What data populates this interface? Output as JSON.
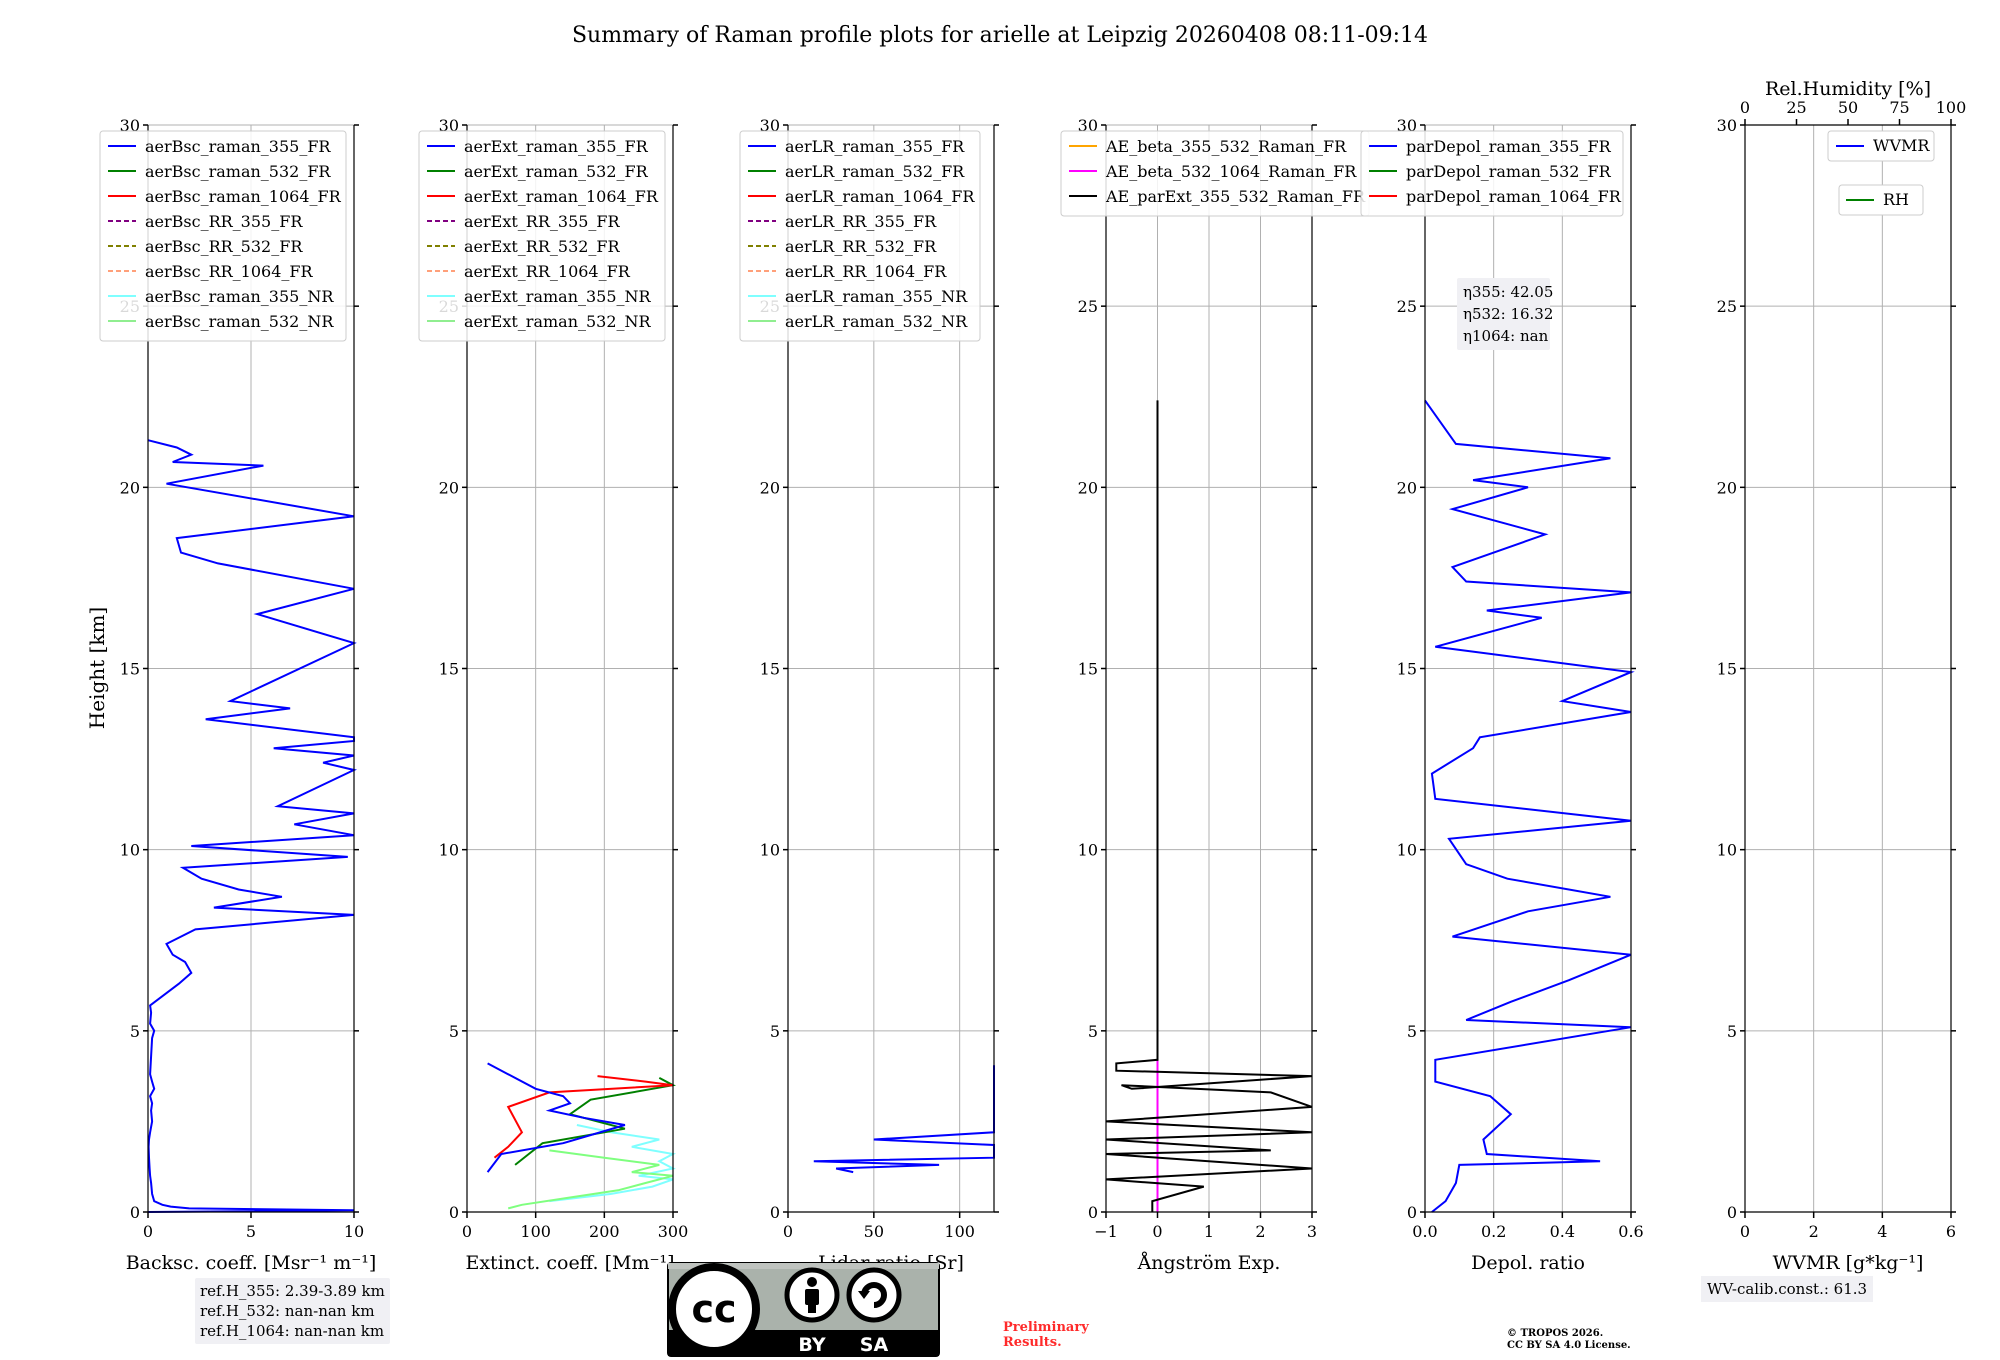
{
  "chart_data": {
    "type": "line",
    "title": "Summary of Raman profile plots for arielle at Leipzig 20260408 08:11-09:14",
    "ylabel": "Height [km]",
    "ylim": [
      0,
      30
    ],
    "yticks": [
      0,
      5,
      10,
      15,
      20,
      25,
      30
    ],
    "panels": [
      {
        "id": "bsc",
        "xlabel": "Backsc. coeff. [Msr$^{-1}$ m$^{-1}$]",
        "xlabel_text": "Backsc. coeff. [Msr⁻¹ m⁻¹]",
        "xlim": [
          0,
          10
        ],
        "xticks": [
          0,
          5,
          10
        ],
        "legend": [
          "aerBsc_raman_355_FR",
          "aerBsc_raman_532_FR",
          "aerBsc_raman_1064_FR",
          "aerBsc_RR_355_FR",
          "aerBsc_RR_532_FR",
          "aerBsc_RR_1064_FR",
          "aerBsc_raman_355_NR",
          "aerBsc_raman_532_NR"
        ],
        "series": [
          {
            "name": "aerBsc_raman_355_FR",
            "color": "#0000ff",
            "y": [
              0.0,
              0.05,
              0.1,
              0.15,
              0.2,
              0.3,
              0.5,
              0.8,
              1.0,
              1.2,
              1.5,
              1.8,
              2.0,
              2.2,
              2.5,
              2.8,
              3.0,
              3.2,
              3.4,
              3.6,
              3.8,
              4.8,
              5.0,
              5.2,
              5.5,
              5.7,
              6.3,
              6.6,
              6.9,
              7.1,
              7.4,
              7.8,
              8.2,
              8.4,
              8.7,
              8.9,
              9.2,
              9.5,
              9.8,
              10.1,
              10.4,
              10.7,
              11.0,
              11.2,
              12.2,
              12.4,
              12.6,
              12.8,
              13.0,
              13.1,
              13.6,
              13.9,
              14.1,
              15.7,
              16.5,
              17.2,
              17.9,
              18.2,
              18.6,
              19.2,
              20.1,
              20.6,
              20.7,
              20.9,
              21.1,
              21.3
            ],
            "x": [
              0.0,
              10,
              2.0,
              1.1,
              0.7,
              0.3,
              0.2,
              0.15,
              0.1,
              0.08,
              0.05,
              0.03,
              0.05,
              0.1,
              0.2,
              0.15,
              0.2,
              0.1,
              0.3,
              0.2,
              0.1,
              0.2,
              0.3,
              0.1,
              0.15,
              0.1,
              1.5,
              2.1,
              1.8,
              1.2,
              0.9,
              2.3,
              10,
              3.2,
              6.5,
              4.4,
              2.6,
              1.7,
              9.7,
              2.1,
              10,
              7.1,
              10,
              6.3,
              10,
              8.5,
              10,
              6.1,
              10,
              10,
              2.8,
              6.9,
              4.0,
              10,
              5.3,
              10,
              3.4,
              1.6,
              1.4,
              10,
              0.9,
              5.6,
              1.2,
              2.1,
              1.4,
              0.0
            ]
          },
          {
            "name": "aerBsc_raman_532_FR",
            "color": "#008000",
            "y": [],
            "x": []
          },
          {
            "name": "aerBsc_raman_1064_FR",
            "color": "#ff0000",
            "y": [],
            "x": []
          }
        ]
      },
      {
        "id": "ext",
        "xlabel_text": "Extinct. coeff. [Mm⁻¹]",
        "xlim": [
          0,
          300
        ],
        "xticks": [
          0,
          100,
          200,
          300
        ],
        "legend": [
          "aerExt_raman_355_FR",
          "aerExt_raman_532_FR",
          "aerExt_raman_1064_FR",
          "aerExt_RR_355_FR",
          "aerExt_RR_532_FR",
          "aerExt_RR_1064_FR",
          "aerExt_raman_355_NR",
          "aerExt_raman_532_NR"
        ],
        "series": [
          {
            "name": "aerExt_raman_355_NR",
            "color": "#7fffff",
            "y": [
              0.3,
              0.5,
              0.7,
              0.9,
              1.0,
              1.2,
              1.4,
              1.6,
              1.8,
              2.0,
              2.2,
              2.4
            ],
            "x": [
              120,
              210,
              270,
              300,
              250,
              300,
              280,
              300,
              240,
              280,
              210,
              160
            ]
          },
          {
            "name": "aerExt_raman_532_NR",
            "color": "#7fff7f",
            "y": [
              0.1,
              0.2,
              0.4,
              0.6,
              0.8,
              1.0,
              1.1,
              1.3,
              1.5,
              1.7
            ],
            "x": [
              60,
              80,
              150,
              220,
              260,
              300,
              240,
              280,
              200,
              120
            ]
          },
          {
            "name": "aerExt_raman_532_FR",
            "color": "#008000",
            "y": [
              1.3,
              1.6,
              1.9,
              2.3,
              2.7,
              3.1,
              3.5,
              3.7
            ],
            "x": [
              70,
              90,
              110,
              230,
              150,
              180,
              300,
              280
            ]
          },
          {
            "name": "aerExt_raman_1064_FR",
            "color": "#ff0000",
            "y": [
              1.5,
              1.8,
              2.2,
              2.9,
              3.3,
              3.5,
              3.6,
              3.75
            ],
            "x": [
              40,
              60,
              80,
              60,
              120,
              300,
              260,
              190
            ]
          },
          {
            "name": "aerExt_raman_355_FR",
            "color": "#0000ff",
            "y": [
              1.1,
              1.6,
              1.9,
              2.4,
              2.6,
              2.8,
              3.0,
              3.2,
              3.4,
              4.1
            ],
            "x": [
              30,
              50,
              140,
              230,
              170,
              120,
              150,
              140,
              100,
              30
            ]
          }
        ]
      },
      {
        "id": "lr",
        "xlabel_text": "Lidar ratio [Sr]",
        "xlim": [
          0,
          120
        ],
        "xticks": [
          0,
          50,
          100
        ],
        "legend": [
          "aerLR_raman_355_FR",
          "aerLR_raman_532_FR",
          "aerLR_raman_1064_FR",
          "aerLR_RR_355_FR",
          "aerLR_RR_532_FR",
          "aerLR_RR_1064_FR",
          "aerLR_raman_355_NR",
          "aerLR_raman_532_NR"
        ],
        "series": [
          {
            "name": "aerLR_raman_355_FR",
            "color": "#0000ff",
            "y": [
              1.1,
              1.2,
              1.3,
              1.4,
              1.5,
              1.7,
              1.85,
              2.0,
              2.2,
              2.4,
              2.6,
              2.75,
              2.85,
              2.95,
              3.05,
              3.15,
              3.3,
              3.6,
              4.05
            ],
            "x": [
              38,
              28,
              88,
              15,
              120,
              120,
              120,
              50,
              120,
              120,
              120,
              120,
              120,
              120,
              120,
              120,
              120,
              120,
              120
            ]
          }
        ]
      },
      {
        "id": "ae",
        "xlabel_text": "Ångström Exp.",
        "xlim": [
          -1,
          3
        ],
        "xticks": [
          -1,
          0,
          1,
          2,
          3
        ],
        "legend": [
          "AE_beta_355_532_Raman_FR",
          "AE_beta_532_1064_Raman_FR",
          "AE_parExt_355_532_Raman_FR"
        ],
        "series": [
          {
            "name": "AE_beta_532_1064_Raman_FR",
            "color": "#ff00ff",
            "y": [
              0,
              4.2
            ],
            "x": [
              0,
              0
            ]
          },
          {
            "name": "AE_parExt_355_532_Raman_FR",
            "color": "#000000",
            "y": [
              0.0,
              0.3,
              0.7,
              0.9,
              1.2,
              1.6,
              1.7,
              2.0,
              2.2,
              2.5,
              2.9,
              3.3,
              3.5,
              3.4,
              3.75,
              3.9,
              4.1,
              4.2,
              22.4
            ],
            "x": [
              -0.1,
              -0.1,
              0.9,
              -1.0,
              3.0,
              -1.0,
              2.2,
              -1.0,
              3.0,
              -1.0,
              3.0,
              2.2,
              -0.7,
              -0.5,
              3.0,
              -0.8,
              -0.8,
              0.0,
              0.0
            ]
          }
        ]
      },
      {
        "id": "dep",
        "xlabel_text": "Depol. ratio",
        "xlim": [
          0.0,
          0.6
        ],
        "xticks": [
          0.0,
          0.2,
          0.4,
          0.6
        ],
        "legend": [
          "parDepol_raman_355_FR",
          "parDepol_raman_532_FR",
          "parDepol_raman_1064_FR"
        ],
        "series": [
          {
            "name": "parDepol_raman_355_FR",
            "color": "#0000ff",
            "y": [
              0.0,
              0.3,
              0.8,
              1.3,
              1.4,
              1.6,
              2.0,
              2.7,
              3.2,
              3.6,
              4.2,
              5.1,
              5.3,
              5.8,
              6.4,
              7.1,
              7.6,
              8.3,
              8.7,
              9.2,
              9.6,
              10.3,
              10.8,
              11.4,
              12.1,
              12.8,
              13.1,
              13.8,
              14.1,
              14.9,
              15.6,
              16.4,
              16.6,
              17.1,
              17.4,
              17.8,
              18.7,
              19.4,
              20.0,
              20.2,
              20.8,
              21.2,
              22.4
            ],
            "x": [
              0.02,
              0.06,
              0.09,
              0.1,
              0.51,
              0.18,
              0.17,
              0.25,
              0.19,
              0.03,
              0.03,
              0.6,
              0.12,
              0.25,
              0.42,
              0.6,
              0.08,
              0.3,
              0.54,
              0.24,
              0.12,
              0.07,
              0.6,
              0.03,
              0.02,
              0.14,
              0.16,
              0.6,
              0.4,
              0.6,
              0.03,
              0.34,
              0.18,
              0.6,
              0.12,
              0.08,
              0.35,
              0.08,
              0.3,
              0.14,
              0.54,
              0.09,
              0.0
            ]
          }
        ]
      },
      {
        "id": "wv",
        "xlabel_text": "WVMR [g*kg⁻¹]",
        "xlim": [
          0,
          6
        ],
        "xticks": [
          0,
          2,
          4,
          6
        ],
        "top_axis_label": "Rel.Humidity [%]",
        "top_xlim": [
          0,
          100
        ],
        "top_xticks": [
          0,
          25,
          50,
          75,
          100
        ],
        "legend": [
          "WVMR",
          "RH"
        ],
        "series": []
      }
    ],
    "eta_lines": [
      "η355: 42.05",
      "η532: 16.32",
      "η1064: nan"
    ],
    "colors": {
      "raman_355_FR": "#0000ff",
      "raman_532_FR": "#008000",
      "raman_1064_FR": "#ff0000",
      "RR_355_FR": "#800080",
      "RR_532_FR": "#808000",
      "RR_1064_FR": "#ffa07a",
      "raman_355_NR": "#7fffff",
      "raman_532_NR": "#90ee90",
      "AE_beta_355_532": "#ffa500",
      "AE_beta_532_1064": "#ff00ff",
      "AE_parExt": "#000000"
    }
  },
  "ref_heights": [
    "ref.H_355: 2.39-3.89 km",
    "ref.H_532: nan-nan km",
    "ref.H_1064: nan-nan km"
  ],
  "wv_calib": "WV-calib.const.: 61.3",
  "license": {
    "left": "BY",
    "right": "SA"
  },
  "preliminary": [
    "Preliminary",
    "Results."
  ],
  "copyright": [
    "© TROPOS 2026.",
    "CC BY SA 4.0 License."
  ]
}
